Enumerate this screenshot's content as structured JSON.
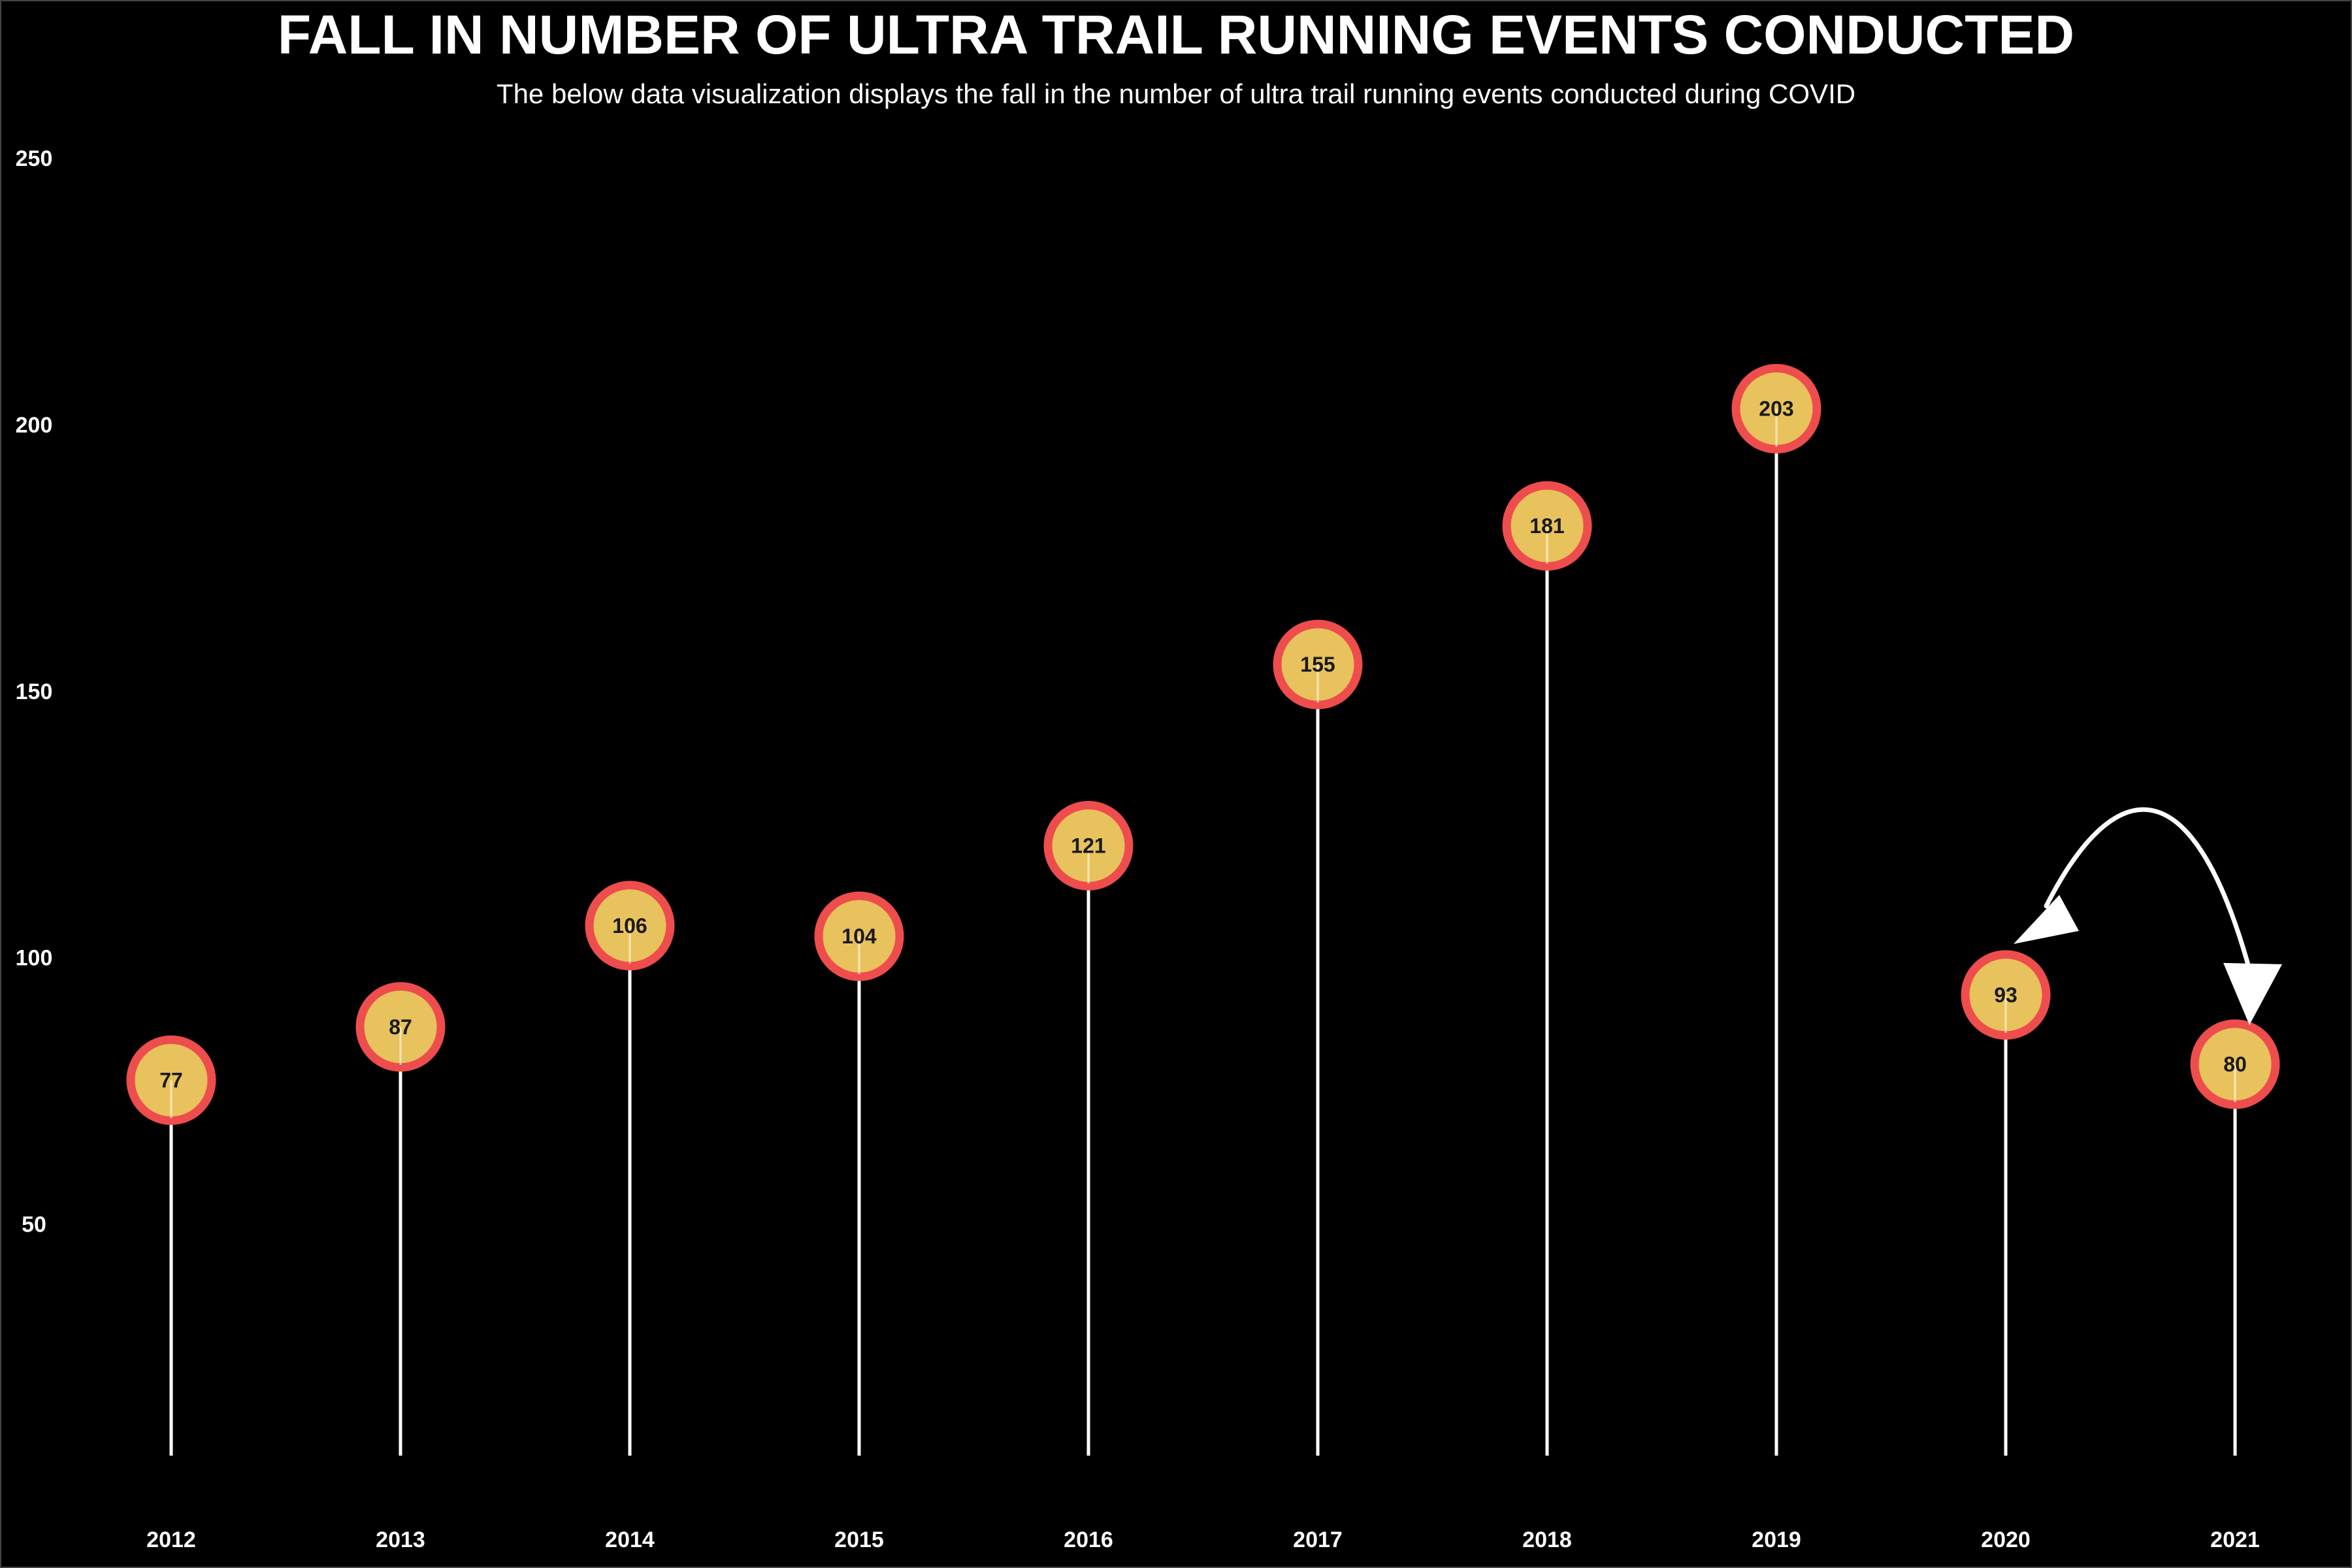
{
  "chart_data": {
    "type": "lollipop",
    "title": "FALL IN NUMBER OF ULTRA TRAIL RUNNING EVENTS CONDUCTED",
    "subtitle": "The below data visualization displays the fall in the number of ultra trail running events conducted during COVID",
    "xlabel": "",
    "ylabel": "",
    "categories": [
      "2012",
      "2013",
      "2014",
      "2015",
      "2016",
      "2017",
      "2018",
      "2019",
      "2020",
      "2021"
    ],
    "values": [
      77,
      87,
      106,
      104,
      121,
      155,
      181,
      203,
      93,
      80
    ],
    "ylim": [
      3,
      257
    ],
    "yticks": [
      50,
      100,
      150,
      200,
      250
    ],
    "grid": false,
    "legend": "none",
    "annotation": {
      "type": "curved-double-arrow",
      "from": "2020",
      "to": "2021"
    },
    "colors": {
      "background": "#000000",
      "stem": "#ffffff",
      "marker_fill": "#e8c25c",
      "marker_edge": "#ee4d4d",
      "text": "#ffffff",
      "label_text": "#1a1a1a"
    }
  }
}
